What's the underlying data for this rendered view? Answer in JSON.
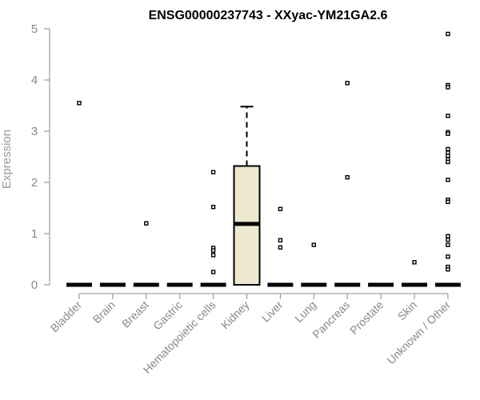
{
  "chart_data": {
    "type": "boxplot",
    "title": "ENSG00000237743 - XXyac-YM21GA2.6",
    "xlabel": "",
    "ylabel": "Expression",
    "ylim": [
      0,
      5
    ],
    "yticks": [
      0,
      1,
      2,
      3,
      4,
      5
    ],
    "ytick_labels": [
      "0",
      "1",
      "2",
      "3",
      "4",
      "5"
    ],
    "grid": false,
    "categories": [
      "Bladder",
      "Brain",
      "Breast",
      "Gastric",
      "Hematopoietic cells",
      "Kidney",
      "Liver",
      "Lung",
      "Pancreas",
      "Prostate",
      "Skin",
      "Unknown / Other"
    ],
    "boxes": [
      {
        "category": "Bladder",
        "q1": 0,
        "median": 0,
        "q3": 0,
        "whisker_low": 0,
        "whisker_high": 0,
        "outliers": [
          3.55
        ]
      },
      {
        "category": "Brain",
        "q1": 0,
        "median": 0,
        "q3": 0,
        "whisker_low": 0,
        "whisker_high": 0,
        "outliers": []
      },
      {
        "category": "Breast",
        "q1": 0,
        "median": 0,
        "q3": 0,
        "whisker_low": 0,
        "whisker_high": 0,
        "outliers": [
          1.2
        ]
      },
      {
        "category": "Gastric",
        "q1": 0,
        "median": 0,
        "q3": 0,
        "whisker_low": 0,
        "whisker_high": 0,
        "outliers": []
      },
      {
        "category": "Hematopoietic cells",
        "q1": 0,
        "median": 0,
        "q3": 0,
        "whisker_low": 0,
        "whisker_high": 0,
        "outliers": [
          2.2,
          1.52,
          0.72,
          0.67,
          0.58,
          0.25
        ]
      },
      {
        "category": "Kidney",
        "q1": 0,
        "median": 1.19,
        "q3": 2.32,
        "whisker_low": 0,
        "whisker_high": 3.48,
        "outliers": [],
        "fill": "#ede8d0"
      },
      {
        "category": "Liver",
        "q1": 0,
        "median": 0,
        "q3": 0,
        "whisker_low": 0,
        "whisker_high": 0,
        "outliers": [
          1.48,
          0.87,
          0.73
        ]
      },
      {
        "category": "Lung",
        "q1": 0,
        "median": 0,
        "q3": 0,
        "whisker_low": 0,
        "whisker_high": 0,
        "outliers": [
          0.78
        ]
      },
      {
        "category": "Pancreas",
        "q1": 0,
        "median": 0,
        "q3": 0,
        "whisker_low": 0,
        "whisker_high": 0,
        "outliers": [
          3.94,
          2.1
        ]
      },
      {
        "category": "Prostate",
        "q1": 0,
        "median": 0,
        "q3": 0,
        "whisker_low": 0,
        "whisker_high": 0,
        "outliers": []
      },
      {
        "category": "Skin",
        "q1": 0,
        "median": 0,
        "q3": 0,
        "whisker_low": 0,
        "whisker_high": 0,
        "outliers": [
          0.44
        ]
      },
      {
        "category": "Unknown / Other",
        "q1": 0,
        "median": 0,
        "q3": 0,
        "whisker_low": 0,
        "whisker_high": 0,
        "outliers": [
          4.9,
          3.9,
          3.86,
          3.3,
          2.98,
          2.95,
          2.65,
          2.58,
          2.52,
          2.45,
          2.4,
          2.05,
          1.66,
          1.62,
          0.95,
          0.88,
          0.78,
          0.55,
          0.35,
          0.3
        ]
      }
    ],
    "colors": {
      "box_fill": "#ede8d0",
      "line": "#000000",
      "axis": "#888888"
    }
  }
}
